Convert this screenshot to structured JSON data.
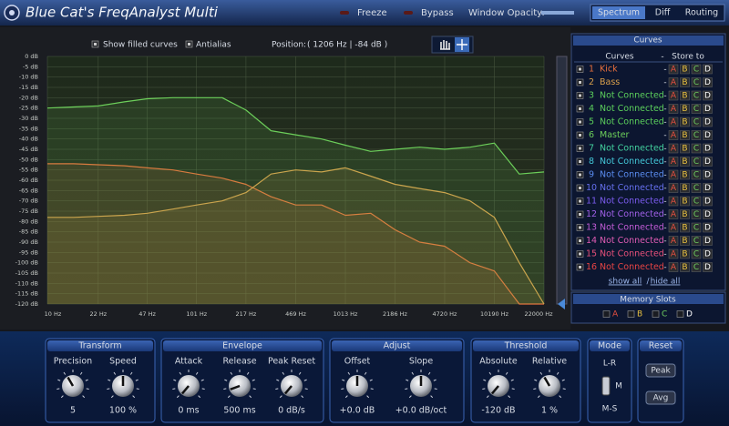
{
  "header": {
    "title": "Blue Cat's FreqAnalyst Multi",
    "freeze": "Freeze",
    "bypass": "Bypass",
    "window_opacity": "Window Opacity:",
    "tabs": [
      "Spectrum",
      "Diff",
      "Routing"
    ]
  },
  "toolbar": {
    "show_filled_curves": "Show filled curves",
    "antialias": "Antialias",
    "position_label": "Position:",
    "position_value": "( 1206 Hz | -84 dB )"
  },
  "chart_data": {
    "type": "line",
    "log_x": true,
    "grid": true,
    "xlim": [
      10,
      22000
    ],
    "ylim": [
      -120,
      0
    ],
    "x": [
      10,
      15,
      22,
      33,
      47,
      70,
      101,
      150,
      217,
      320,
      469,
      700,
      1013,
      1500,
      2186,
      3200,
      4720,
      7000,
      10190,
      15000,
      22000
    ],
    "xticks": [
      {
        "value": 10,
        "label": "10 Hz"
      },
      {
        "value": 22,
        "label": "22 Hz"
      },
      {
        "value": 47,
        "label": "47 Hz"
      },
      {
        "value": 101,
        "label": "101 Hz"
      },
      {
        "value": 217,
        "label": "217 Hz"
      },
      {
        "value": 469,
        "label": "469 Hz"
      },
      {
        "value": 1013,
        "label": "1013 Hz"
      },
      {
        "value": 2186,
        "label": "2186 Hz"
      },
      {
        "value": 4720,
        "label": "4720 Hz"
      },
      {
        "value": 10190,
        "label": "10190 Hz"
      },
      {
        "value": 22000,
        "label": "22000 Hz"
      }
    ],
    "yticks": [
      {
        "value": 0,
        "label": "0 dB"
      },
      {
        "value": -5,
        "label": "-5 dB"
      },
      {
        "value": -10,
        "label": "-10 dB"
      },
      {
        "value": -15,
        "label": "-15 dB"
      },
      {
        "value": -20,
        "label": "-20 dB"
      },
      {
        "value": -25,
        "label": "-25 dB"
      },
      {
        "value": -30,
        "label": "-30 dB"
      },
      {
        "value": -35,
        "label": "-35 dB"
      },
      {
        "value": -40,
        "label": "-40 dB"
      },
      {
        "value": -45,
        "label": "-45 dB"
      },
      {
        "value": -50,
        "label": "-50 dB"
      },
      {
        "value": -55,
        "label": "-55 dB"
      },
      {
        "value": -60,
        "label": "-60 dB"
      },
      {
        "value": -65,
        "label": "-65 dB"
      },
      {
        "value": -70,
        "label": "-70 dB"
      },
      {
        "value": -75,
        "label": "-75 dB"
      },
      {
        "value": -80,
        "label": "-80 dB"
      },
      {
        "value": -85,
        "label": "-85 dB"
      },
      {
        "value": -90,
        "label": "-90 dB"
      },
      {
        "value": -95,
        "label": "-95 dB"
      },
      {
        "value": -100,
        "label": "-100 dB"
      },
      {
        "value": -105,
        "label": "-105 dB"
      },
      {
        "value": -110,
        "label": "-110 dB"
      },
      {
        "value": -115,
        "label": "-115 dB"
      },
      {
        "value": -120,
        "label": "-120 dB"
      }
    ],
    "series": [
      {
        "number": 1,
        "name": "Kick",
        "color": "#e8703c",
        "values": [
          -52,
          -52,
          -52.5,
          -53,
          -54,
          -55,
          -57,
          -59,
          -62,
          -68,
          -72,
          -72,
          -77,
          -76,
          -84,
          -90,
          -92,
          -100,
          -104,
          -120,
          -120
        ]
      },
      {
        "number": 2,
        "name": "Bass",
        "color": "#d9a04c",
        "values": [
          -78,
          -78,
          -77.5,
          -77,
          -76,
          -74,
          -72,
          -70,
          -66,
          -57,
          -55,
          -56,
          -54,
          -58,
          -62,
          -64,
          -66,
          -70,
          -78,
          -100,
          -120
        ]
      },
      {
        "number": 3,
        "name": "Not Connected",
        "color": "#5cd05c"
      },
      {
        "number": 4,
        "name": "Not Connected",
        "color": "#5cd05c"
      },
      {
        "number": 5,
        "name": "Not Connected",
        "color": "#5cd05c"
      },
      {
        "number": 6,
        "name": "Master",
        "color": "#6ccf5a",
        "values": [
          -25,
          -24.5,
          -24,
          -22,
          -20.5,
          -20,
          -20,
          -20,
          -26,
          -36,
          -38,
          -40,
          -43,
          -46,
          -45,
          -44,
          -45,
          -44,
          -42,
          -57,
          -56
        ]
      },
      {
        "number": 7,
        "name": "Not Connected",
        "color": "#44d4a0"
      },
      {
        "number": 8,
        "name": "Not Connected",
        "color": "#44c8d8"
      },
      {
        "number": 9,
        "name": "Not Connected",
        "color": "#5a8cf0"
      },
      {
        "number": 10,
        "name": "Not Connected",
        "color": "#6670f0"
      },
      {
        "number": 11,
        "name": "Not Connected",
        "color": "#7c5cf0"
      },
      {
        "number": 12,
        "name": "Not Connected",
        "color": "#a060e8"
      },
      {
        "number": 13,
        "name": "Not Connected",
        "color": "#c45cd8"
      },
      {
        "number": 14,
        "name": "Not Connected",
        "color": "#e05cb4"
      },
      {
        "number": 15,
        "name": "Not Connected",
        "color": "#e8507a"
      },
      {
        "number": 16,
        "name": "Not Connected",
        "color": "#e84444"
      }
    ]
  },
  "curves_panel": {
    "title": "Curves",
    "column_curves": "Curves",
    "column_dash": "-",
    "column_store": "Store to",
    "slots": [
      "A",
      "B",
      "C",
      "D"
    ],
    "show_all": "show all",
    "separator": "/",
    "hide_all": "hide all",
    "memory_title": "Memory Slots"
  },
  "controls": [
    {
      "title": "Transform",
      "knobs": [
        {
          "label": "Precision",
          "value": "5"
        },
        {
          "label": "Speed",
          "value": "100 %"
        }
      ]
    },
    {
      "title": "Envelope",
      "knobs": [
        {
          "label": "Attack",
          "value": "0 ms"
        },
        {
          "label": "Release",
          "value": "500 ms"
        },
        {
          "label": "Peak Reset",
          "value": "0 dB/s"
        }
      ]
    },
    {
      "title": "Adjust",
      "knobs": [
        {
          "label": "Offset",
          "value": "+0.0 dB"
        },
        {
          "label": "Slope",
          "value": "+0.0 dB/oct"
        }
      ]
    },
    {
      "title": "Threshold",
      "knobs": [
        {
          "label": "Absolute",
          "value": "-120 dB"
        },
        {
          "label": "Relative",
          "value": "1 %"
        }
      ]
    },
    {
      "title": "Mode",
      "options": [
        "L-R",
        "M",
        "M-S"
      ]
    },
    {
      "title": "Reset",
      "buttons": [
        "Peak",
        "Avg"
      ]
    }
  ]
}
